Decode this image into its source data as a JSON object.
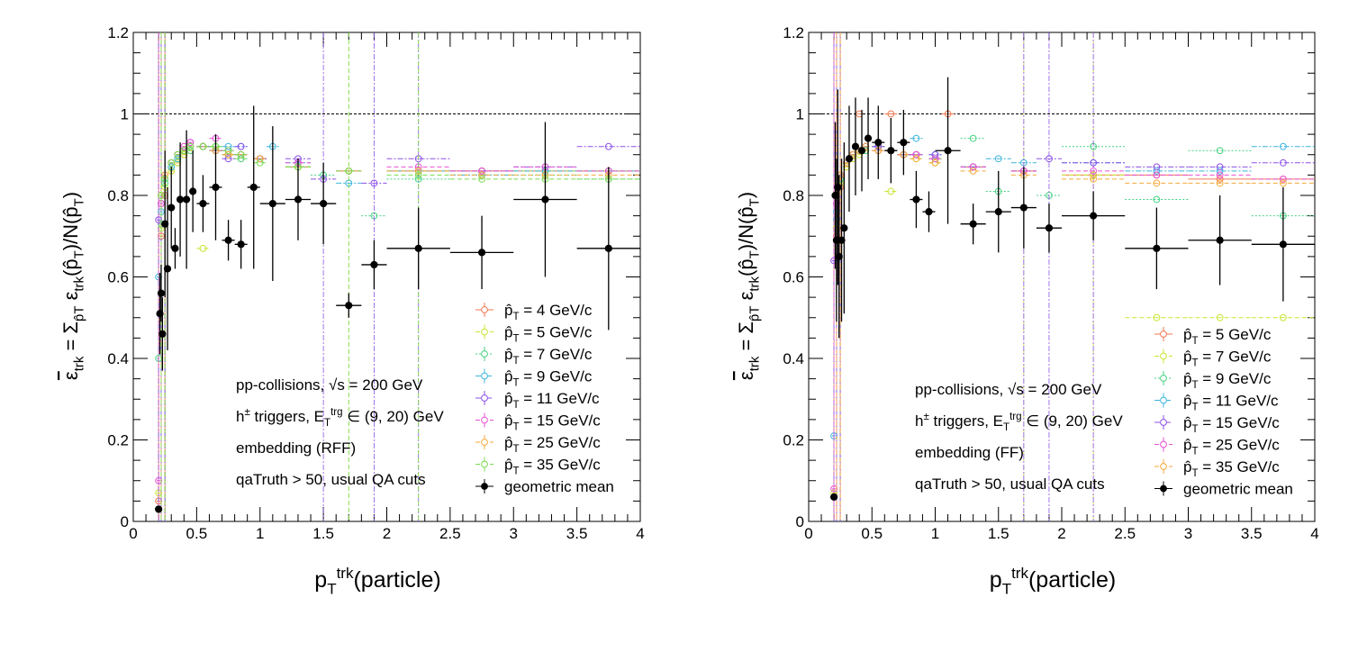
{
  "chart_data": [
    {
      "type": "scatter",
      "xlabel": "p_T^trk(particle)",
      "ylabel": "ε_trk = Σ ε_trk(p̂_T)/N(p̂_T)",
      "xlim": [
        0,
        4
      ],
      "ylim": [
        0,
        1.2
      ],
      "x_ticks": [
        "0",
        "0.5",
        "1",
        "1.5",
        "2",
        "2.5",
        "3",
        "3.5",
        "4"
      ],
      "y_ticks": [
        "0",
        "0.2",
        "0.4",
        "0.6",
        "0.8",
        "1",
        "1.2"
      ],
      "reference_line": 1,
      "annotations": [
        "pp-collisions, √s = 200 GeV",
        "h± triggers, E_T^trg ∈ (9, 20) GeV",
        "embedding (RFF)",
        "qaTruth > 50, usual QA cuts"
      ],
      "legend_position": "bottom-right",
      "series": [
        {
          "name": "p̂_T = 4 GeV/c",
          "color": "#f07850",
          "style": "solid",
          "x": [
            0.2,
            0.22,
            0.25,
            0.3,
            0.35,
            0.4,
            0.45,
            0.55,
            0.65,
            0.75,
            0.85,
            1.0,
            1.3,
            1.7,
            2.25,
            2.75,
            3.25,
            3.75
          ],
          "y": [
            0.05,
            0.7,
            0.8,
            0.86,
            0.88,
            0.9,
            0.91,
            0.92,
            0.91,
            0.9,
            0.9,
            0.89,
            0.87,
            0.86,
            0.86,
            0.86,
            0.86,
            0.86
          ]
        },
        {
          "name": "p̂_T = 5 GeV/c",
          "color": "#c8e632",
          "style": "dashed",
          "x": [
            0.2,
            0.22,
            0.25,
            0.3,
            0.35,
            0.4,
            0.45,
            0.55,
            0.65,
            0.75,
            0.85,
            1.0,
            1.3,
            1.7,
            2.25,
            2.75,
            3.25,
            3.75
          ],
          "y": [
            0.07,
            0.72,
            0.82,
            0.86,
            0.88,
            0.9,
            0.91,
            0.67,
            0.92,
            0.9,
            0.89,
            0.89,
            0.87,
            0.86,
            0.86,
            0.86,
            0.86,
            0.86
          ]
        },
        {
          "name": "p̂_T = 7 GeV/c",
          "color": "#46d282",
          "style": "dotted",
          "x": [
            0.2,
            0.22,
            0.25,
            0.3,
            0.35,
            0.4,
            0.45,
            0.55,
            0.65,
            0.75,
            0.85,
            1.0,
            1.3,
            1.5,
            1.9,
            2.25,
            2.75,
            3.25,
            3.75
          ],
          "y": [
            0.4,
            0.73,
            0.83,
            0.87,
            0.89,
            0.91,
            0.91,
            0.92,
            0.92,
            0.9,
            0.89,
            0.89,
            0.87,
            0.85,
            0.75,
            0.84,
            0.85,
            0.85,
            0.84
          ]
        },
        {
          "name": "p̂_T = 9 GeV/c",
          "color": "#3cb4dc",
          "style": "dashdot",
          "x": [
            0.2,
            0.22,
            0.25,
            0.3,
            0.35,
            0.4,
            0.45,
            0.55,
            0.65,
            0.75,
            0.85,
            1.0,
            1.1,
            1.3,
            1.7,
            2.25,
            2.75,
            3.25,
            3.75
          ],
          "y": [
            0.6,
            0.76,
            0.84,
            0.87,
            0.89,
            0.91,
            0.92,
            0.92,
            0.91,
            0.92,
            0.92,
            0.89,
            0.92,
            0.88,
            0.83,
            0.86,
            0.85,
            0.86,
            0.86
          ]
        },
        {
          "name": "p̂_T = 11 GeV/c",
          "color": "#8c50e6",
          "style": "dashdot",
          "x": [
            0.2,
            0.22,
            0.25,
            0.3,
            0.35,
            0.4,
            0.45,
            0.55,
            0.65,
            0.75,
            0.85,
            1.0,
            1.3,
            1.5,
            1.9,
            2.25,
            2.75,
            3.25,
            3.75
          ],
          "y": [
            0.74,
            0.78,
            0.84,
            0.88,
            0.9,
            0.91,
            0.93,
            0.92,
            0.91,
            0.89,
            0.92,
            0.89,
            0.89,
            0.84,
            0.83,
            0.89,
            0.86,
            0.87,
            0.92
          ]
        },
        {
          "name": "p̂_T = 15 GeV/c",
          "color": "#e650d2",
          "style": "dashed",
          "x": [
            0.2,
            0.22,
            0.25,
            0.3,
            0.35,
            0.4,
            0.45,
            0.55,
            0.65,
            0.75,
            0.85,
            1.0,
            1.3,
            1.7,
            2.25,
            2.75,
            3.25,
            3.75
          ],
          "y": [
            0.1,
            0.78,
            0.85,
            0.88,
            0.9,
            0.92,
            0.93,
            0.92,
            0.94,
            0.91,
            0.9,
            0.89,
            0.88,
            0.86,
            0.87,
            0.86,
            0.87,
            0.86
          ]
        },
        {
          "name": "p̂_T = 25 GeV/c",
          "color": "#f5aa3c",
          "style": "dashed",
          "x": [
            0.22,
            0.25,
            0.3,
            0.35,
            0.4,
            0.45,
            0.55,
            0.65,
            0.75,
            0.85,
            1.0,
            1.3,
            1.7,
            2.25,
            2.75,
            3.25,
            3.75
          ],
          "y": [
            0.8,
            0.85,
            0.88,
            0.9,
            0.91,
            0.92,
            0.92,
            0.91,
            0.9,
            0.9,
            0.89,
            0.87,
            0.86,
            0.86,
            0.85,
            0.85,
            0.85
          ]
        },
        {
          "name": "p̂_T = 35 GeV/c",
          "color": "#78dc50",
          "style": "dashed",
          "x": [
            0.22,
            0.25,
            0.3,
            0.35,
            0.4,
            0.45,
            0.55,
            0.65,
            0.75,
            0.85,
            1.0,
            1.3,
            1.7,
            2.25,
            2.75,
            3.25,
            3.75
          ],
          "y": [
            0.8,
            0.84,
            0.88,
            0.9,
            0.91,
            0.92,
            0.92,
            0.92,
            0.91,
            0.9,
            0.88,
            0.87,
            0.86,
            0.85,
            0.84,
            0.84,
            0.84
          ]
        },
        {
          "name": "geometric mean",
          "color": "#000000",
          "style": "solid",
          "marker": "filled",
          "x": [
            0.2,
            0.21,
            0.22,
            0.23,
            0.25,
            0.27,
            0.3,
            0.33,
            0.37,
            0.42,
            0.47,
            0.55,
            0.65,
            0.75,
            0.85,
            0.95,
            1.1,
            1.3,
            1.5,
            1.7,
            1.9,
            2.25,
            2.75,
            3.25,
            3.75
          ],
          "y": [
            0.03,
            0.51,
            0.56,
            0.46,
            0.73,
            0.62,
            0.77,
            0.67,
            0.79,
            0.79,
            0.81,
            0.78,
            0.82,
            0.69,
            0.68,
            0.82,
            0.78,
            0.79,
            0.78,
            0.53,
            0.63,
            0.67,
            0.66,
            0.79,
            0.67
          ],
          "xerr": [
            0.005,
            0.005,
            0.005,
            0.005,
            0.01,
            0.01,
            0.015,
            0.015,
            0.02,
            0.025,
            0.025,
            0.05,
            0.05,
            0.05,
            0.05,
            0.05,
            0.1,
            0.1,
            0.1,
            0.1,
            0.1,
            0.25,
            0.25,
            0.25,
            0.25
          ],
          "yerr": [
            0,
            0.1,
            0.07,
            0.09,
            0.18,
            0.2,
            0.1,
            0.05,
            0.14,
            0.17,
            0.1,
            0.07,
            0.13,
            0.05,
            0.06,
            0.2,
            0.19,
            0.1,
            0.1,
            0.03,
            0.06,
            0.1,
            0.09,
            0.19,
            0.2
          ]
        }
      ]
    },
    {
      "type": "scatter",
      "xlabel": "p_T^trk(particle)",
      "ylabel": "ε_trk = Σ ε_trk(p̂_T)/N(p̂_T)",
      "xlim": [
        0,
        4
      ],
      "ylim": [
        0,
        1.2
      ],
      "x_ticks": [
        "0",
        "0.5",
        "1",
        "1.5",
        "2",
        "2.5",
        "3",
        "3.5",
        "4"
      ],
      "y_ticks": [
        "0",
        "0.2",
        "0.4",
        "0.6",
        "0.8",
        "1",
        "1.2"
      ],
      "reference_line": 1,
      "annotations": [
        "pp-collisions, √s = 200 GeV",
        "h± triggers, E_T^trg ∈ (9, 20) GeV",
        "embedding (FF)",
        "qaTruth > 50, usual QA cuts"
      ],
      "legend_position": "bottom-right",
      "series": [
        {
          "name": "p̂_T = 5 GeV/c",
          "color": "#f07850",
          "style": "solid",
          "x": [
            0.2,
            0.22,
            0.25,
            0.3,
            0.35,
            0.4,
            0.45,
            0.55,
            0.65,
            0.75,
            0.85,
            1.0,
            1.1,
            1.3,
            1.7,
            2.25,
            2.75,
            3.25,
            3.75
          ],
          "y": [
            0.06,
            0.7,
            0.82,
            0.87,
            0.89,
            1.0,
            0.91,
            0.92,
            1.0,
            0.9,
            0.9,
            0.89,
            1.0,
            0.87,
            0.86,
            0.85,
            0.85,
            0.84,
            0.84
          ]
        },
        {
          "name": "p̂_T = 7 GeV/c",
          "color": "#c8e632",
          "style": "dashed",
          "x": [
            0.2,
            0.22,
            0.25,
            0.3,
            0.35,
            0.4,
            0.45,
            0.55,
            0.65,
            0.75,
            0.85,
            1.0,
            1.3,
            1.7,
            2.25,
            2.75,
            3.25,
            3.75
          ],
          "y": [
            0.07,
            0.72,
            0.83,
            0.87,
            0.89,
            0.9,
            0.91,
            0.91,
            0.81,
            0.9,
            0.89,
            0.88,
            0.87,
            0.86,
            0.85,
            0.5,
            0.5,
            0.5
          ]
        },
        {
          "name": "p̂_T = 9 GeV/c",
          "color": "#46d282",
          "style": "dotted",
          "x": [
            0.22,
            0.25,
            0.3,
            0.35,
            0.4,
            0.45,
            0.55,
            0.65,
            0.75,
            0.85,
            1.0,
            1.3,
            1.5,
            1.9,
            2.25,
            2.75,
            3.25,
            3.75
          ],
          "y": [
            0.74,
            0.84,
            0.88,
            0.9,
            0.91,
            0.91,
            0.92,
            0.91,
            0.9,
            0.9,
            0.89,
            0.94,
            0.81,
            0.8,
            0.92,
            0.79,
            0.91,
            0.75
          ]
        },
        {
          "name": "p̂_T = 11 GeV/c",
          "color": "#3cb4dc",
          "style": "dashdot",
          "x": [
            0.2,
            0.22,
            0.25,
            0.3,
            0.35,
            0.4,
            0.45,
            0.55,
            0.65,
            0.75,
            0.85,
            1.0,
            1.3,
            1.5,
            1.7,
            2.25,
            2.75,
            3.25,
            3.75
          ],
          "y": [
            0.21,
            0.76,
            0.85,
            0.88,
            0.9,
            0.91,
            0.92,
            0.92,
            0.91,
            0.9,
            0.94,
            0.9,
            0.87,
            0.89,
            0.88,
            0.88,
            0.86,
            0.86,
            0.92
          ]
        },
        {
          "name": "p̂_T = 15 GeV/c",
          "color": "#8c50e6",
          "style": "dashdot",
          "x": [
            0.2,
            0.22,
            0.25,
            0.3,
            0.35,
            0.4,
            0.45,
            0.55,
            0.65,
            0.75,
            0.85,
            1.0,
            1.3,
            1.7,
            1.9,
            2.25,
            2.75,
            3.25,
            3.75
          ],
          "y": [
            0.64,
            0.78,
            0.85,
            0.88,
            0.9,
            0.91,
            0.92,
            0.92,
            0.91,
            0.9,
            0.9,
            0.9,
            0.87,
            0.86,
            0.89,
            0.88,
            0.87,
            0.87,
            0.88
          ]
        },
        {
          "name": "p̂_T = 25 GeV/c",
          "color": "#e650d2",
          "style": "dashed",
          "x": [
            0.2,
            0.22,
            0.25,
            0.3,
            0.35,
            0.4,
            0.45,
            0.55,
            0.65,
            0.75,
            0.85,
            1.0,
            1.3,
            1.7,
            2.25,
            2.75,
            3.25,
            3.75
          ],
          "y": [
            0.08,
            0.78,
            0.85,
            0.88,
            0.9,
            0.91,
            0.92,
            0.91,
            0.91,
            0.9,
            0.9,
            0.89,
            0.87,
            0.86,
            0.86,
            0.85,
            0.85,
            0.84
          ]
        },
        {
          "name": "p̂_T = 35 GeV/c",
          "color": "#f5aa3c",
          "style": "dashed",
          "x": [
            0.22,
            0.25,
            0.3,
            0.35,
            0.4,
            0.45,
            0.55,
            0.65,
            0.75,
            0.85,
            1.0,
            1.3,
            1.7,
            2.25,
            2.75,
            3.25,
            3.75
          ],
          "y": [
            0.8,
            0.85,
            0.88,
            0.9,
            0.91,
            0.92,
            0.91,
            0.91,
            0.9,
            0.89,
            0.88,
            0.86,
            0.85,
            0.84,
            0.83,
            0.83,
            0.83
          ]
        },
        {
          "name": "geometric mean",
          "color": "#000000",
          "style": "solid",
          "marker": "filled",
          "x": [
            0.2,
            0.21,
            0.22,
            0.23,
            0.24,
            0.26,
            0.28,
            0.32,
            0.37,
            0.42,
            0.47,
            0.55,
            0.65,
            0.75,
            0.85,
            0.95,
            1.1,
            1.3,
            1.5,
            1.7,
            1.9,
            2.25,
            2.75,
            3.25,
            3.75
          ],
          "y": [
            0.06,
            0.8,
            0.69,
            0.82,
            0.65,
            0.69,
            0.72,
            0.89,
            0.92,
            0.91,
            0.94,
            0.93,
            0.91,
            0.93,
            0.79,
            0.76,
            0.91,
            0.73,
            0.76,
            0.77,
            0.72,
            0.75,
            0.67,
            0.69,
            0.68
          ],
          "xerr": [
            0.005,
            0.005,
            0.005,
            0.005,
            0.005,
            0.01,
            0.01,
            0.02,
            0.025,
            0.025,
            0.025,
            0.05,
            0.05,
            0.05,
            0.05,
            0.05,
            0.1,
            0.1,
            0.1,
            0.1,
            0.1,
            0.25,
            0.25,
            0.25,
            0.25
          ],
          "yerr": [
            0,
            0.18,
            0.2,
            0.24,
            0.2,
            0.2,
            0.21,
            0.13,
            0.12,
            0.1,
            0.1,
            0.09,
            0.08,
            0.08,
            0.07,
            0.05,
            0.18,
            0.05,
            0.1,
            0.1,
            0.06,
            0.06,
            0.1,
            0.11,
            0.14
          ]
        }
      ]
    }
  ]
}
